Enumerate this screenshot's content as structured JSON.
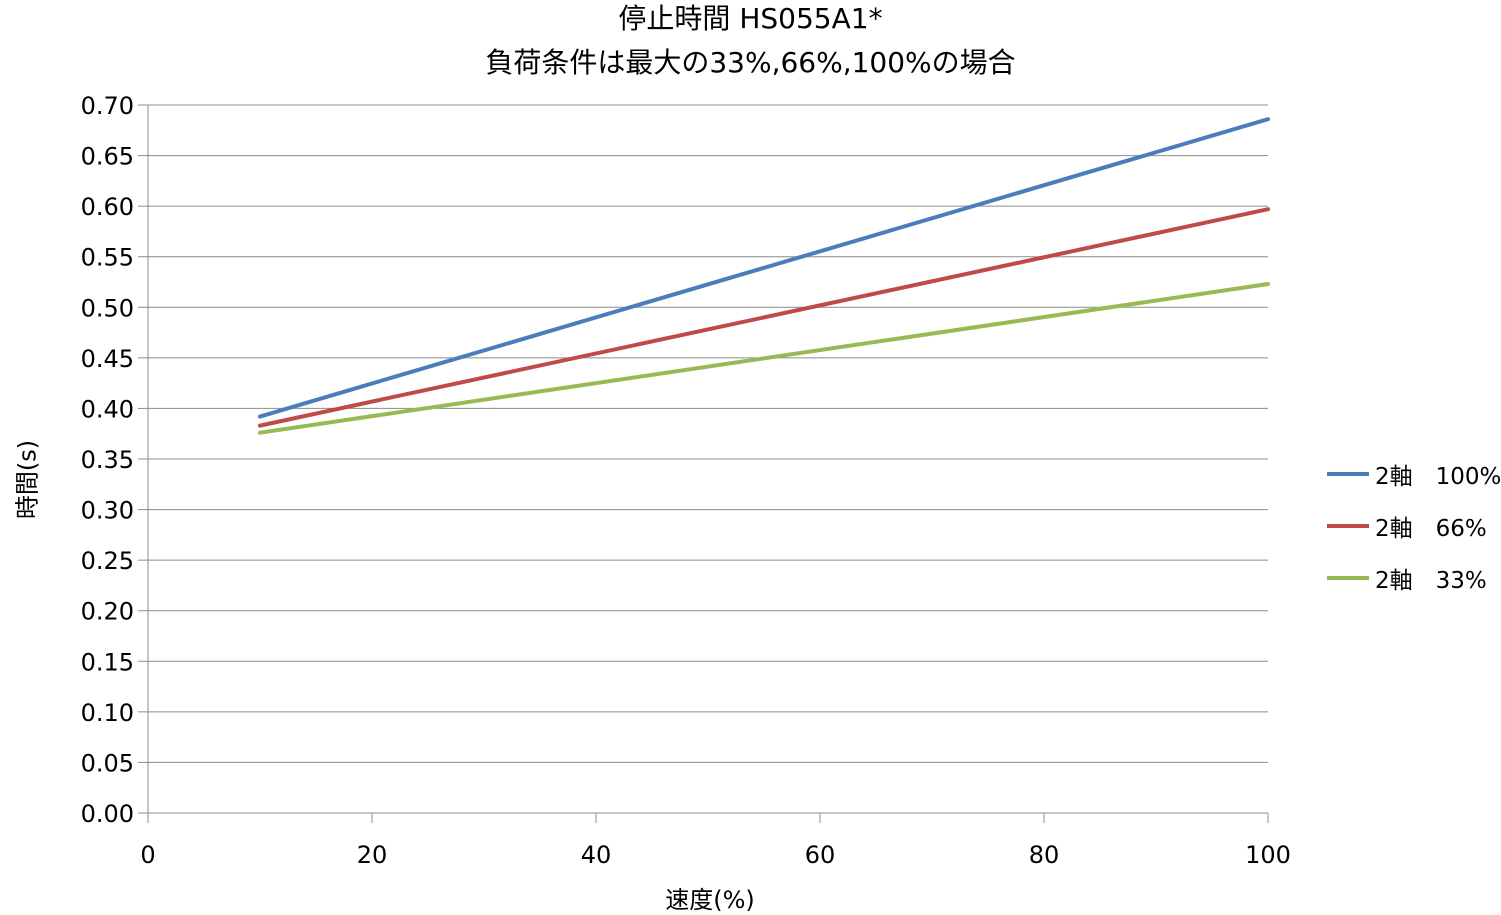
{
  "chart_data": {
    "type": "line",
    "title_line1": "停止時間 HS055A1*",
    "title_line2": "負荷条件は最大の33%,66%,100%の場合",
    "xlabel": "速度(%)",
    "ylabel": "時間(s)",
    "xlim": [
      0,
      100
    ],
    "ylim": [
      0,
      0.7
    ],
    "x_ticks": [
      "0",
      "20",
      "40",
      "60",
      "80",
      "100"
    ],
    "y_ticks": [
      "0.00",
      "0.05",
      "0.10",
      "0.15",
      "0.20",
      "0.25",
      "0.30",
      "0.35",
      "0.40",
      "0.45",
      "0.50",
      "0.55",
      "0.60",
      "0.65",
      "0.70"
    ],
    "grid": "horizontal",
    "legend_position": "right",
    "series": [
      {
        "name": "2軸　100%",
        "color": "#4a7ebb",
        "x": [
          10,
          100
        ],
        "y": [
          0.392,
          0.686
        ]
      },
      {
        "name": "2軸　66%",
        "color": "#be4b48",
        "x": [
          10,
          100
        ],
        "y": [
          0.383,
          0.597
        ]
      },
      {
        "name": "2軸　33%",
        "color": "#98b954",
        "x": [
          10,
          100
        ],
        "y": [
          0.376,
          0.523
        ]
      }
    ]
  }
}
